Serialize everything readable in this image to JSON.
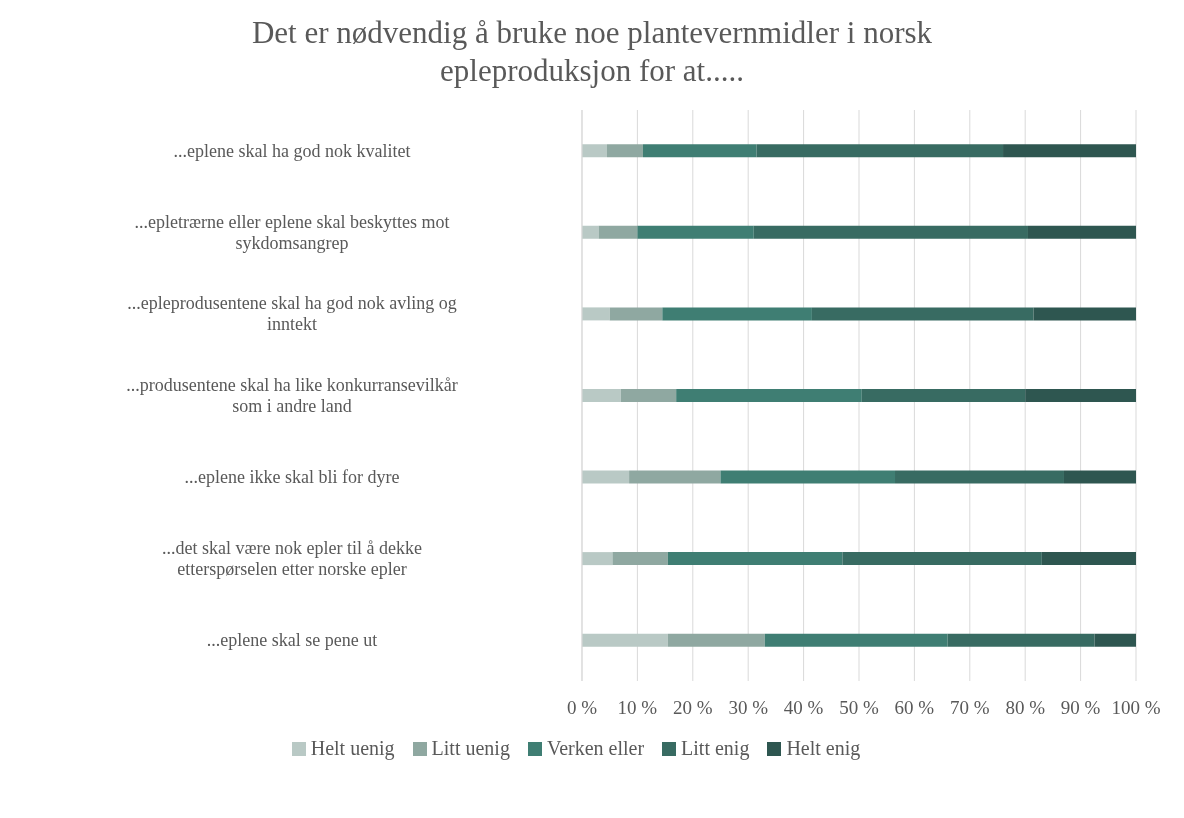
{
  "chart_data": {
    "type": "bar",
    "orientation": "horizontal",
    "stacked": true,
    "title": "Det er nødvendig å bruke noe plantevernmidler i norsk epleproduksjon for at.....",
    "categories": [
      "...eplene skal ha god nok kvalitet",
      "...epletrærne eller eplene skal beskyttes mot sykdomsangrep",
      "...epleprodusentene skal ha god nok avling og inntekt",
      "...produsentene skal ha like konkurransevilkår som i andre land",
      "...eplene ikke skal bli for dyre",
      "...det skal være nok epler til å dekke etterspørselen etter norske epler",
      "...eplene skal se pene ut"
    ],
    "series": [
      {
        "name": "Helt uenig",
        "color": "#b9c9c5",
        "values": [
          4.5,
          3,
          5,
          7,
          8.5,
          5.5,
          15.5
        ]
      },
      {
        "name": "Litt uenig",
        "color": "#8fa8a1",
        "values": [
          6.5,
          7,
          9.5,
          10,
          16.5,
          10,
          17.5
        ]
      },
      {
        "name": "Verken eller",
        "color": "#3f7e73",
        "values": [
          20.5,
          21,
          27,
          33.5,
          31.5,
          31.5,
          33
        ]
      },
      {
        "name": "Litt enig",
        "color": "#386b62",
        "values": [
          44.5,
          49.5,
          40,
          29.5,
          30.5,
          36,
          26.5
        ]
      },
      {
        "name": "Helt enig",
        "color": "#2e5650",
        "values": [
          24,
          19.5,
          18.5,
          20,
          13,
          17,
          7.5
        ]
      }
    ],
    "xlim": [
      0,
      100
    ],
    "xticks": [
      {
        "value": 0,
        "label": "0 %"
      },
      {
        "value": 10,
        "label": "10 %"
      },
      {
        "value": 20,
        "label": "20 %"
      },
      {
        "value": 30,
        "label": "30 %"
      },
      {
        "value": 40,
        "label": "40 %"
      },
      {
        "value": 50,
        "label": "50 %"
      },
      {
        "value": 60,
        "label": "60 %"
      },
      {
        "value": 70,
        "label": "70 %"
      },
      {
        "value": 80,
        "label": "80 %"
      },
      {
        "value": 90,
        "label": "90 %"
      },
      {
        "value": 100,
        "label": "100 %"
      }
    ],
    "grid": "x",
    "legend": "bottom"
  }
}
